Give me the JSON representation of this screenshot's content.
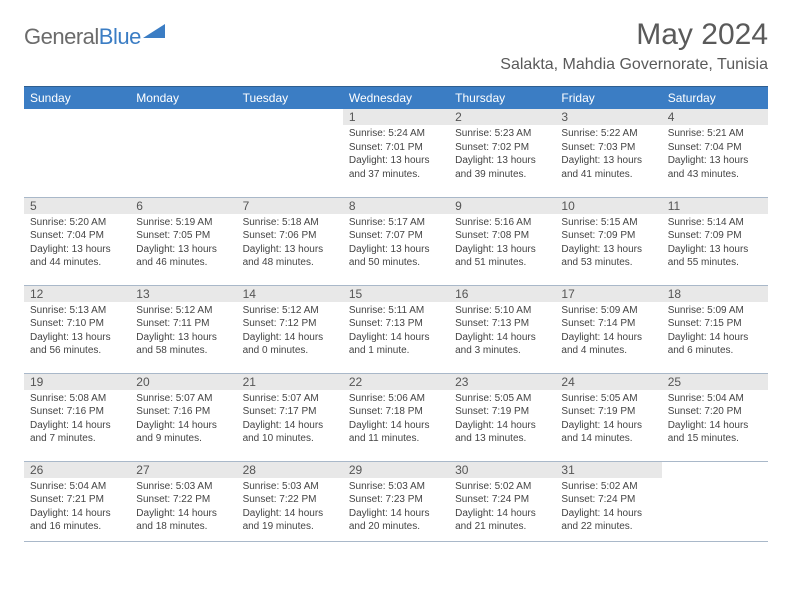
{
  "brand": {
    "part1": "General",
    "part2": "Blue"
  },
  "title": "May 2024",
  "location": "Salakta, Mahdia Governorate, Tunisia",
  "style": {
    "header_bg": "#3b7dc4",
    "header_text": "#ffffff",
    "header_border_top": "#2f5e8f",
    "daynum_bg": "#e8e8e8",
    "cell_border": "#a9b8c9",
    "body_text": "#444444",
    "title_color": "#5a5a5a",
    "font_family": "Arial",
    "month_title_fontsize": 30,
    "location_fontsize": 16,
    "dayhead_fontsize": 12,
    "body_fontsize": 10
  },
  "dayHeaders": [
    "Sunday",
    "Monday",
    "Tuesday",
    "Wednesday",
    "Thursday",
    "Friday",
    "Saturday"
  ],
  "weeks": [
    [
      null,
      null,
      null,
      {
        "n": "1",
        "sr": "Sunrise: 5:24 AM",
        "ss": "Sunset: 7:01 PM",
        "dl": "Daylight: 13 hours and 37 minutes."
      },
      {
        "n": "2",
        "sr": "Sunrise: 5:23 AM",
        "ss": "Sunset: 7:02 PM",
        "dl": "Daylight: 13 hours and 39 minutes."
      },
      {
        "n": "3",
        "sr": "Sunrise: 5:22 AM",
        "ss": "Sunset: 7:03 PM",
        "dl": "Daylight: 13 hours and 41 minutes."
      },
      {
        "n": "4",
        "sr": "Sunrise: 5:21 AM",
        "ss": "Sunset: 7:04 PM",
        "dl": "Daylight: 13 hours and 43 minutes."
      }
    ],
    [
      {
        "n": "5",
        "sr": "Sunrise: 5:20 AM",
        "ss": "Sunset: 7:04 PM",
        "dl": "Daylight: 13 hours and 44 minutes."
      },
      {
        "n": "6",
        "sr": "Sunrise: 5:19 AM",
        "ss": "Sunset: 7:05 PM",
        "dl": "Daylight: 13 hours and 46 minutes."
      },
      {
        "n": "7",
        "sr": "Sunrise: 5:18 AM",
        "ss": "Sunset: 7:06 PM",
        "dl": "Daylight: 13 hours and 48 minutes."
      },
      {
        "n": "8",
        "sr": "Sunrise: 5:17 AM",
        "ss": "Sunset: 7:07 PM",
        "dl": "Daylight: 13 hours and 50 minutes."
      },
      {
        "n": "9",
        "sr": "Sunrise: 5:16 AM",
        "ss": "Sunset: 7:08 PM",
        "dl": "Daylight: 13 hours and 51 minutes."
      },
      {
        "n": "10",
        "sr": "Sunrise: 5:15 AM",
        "ss": "Sunset: 7:09 PM",
        "dl": "Daylight: 13 hours and 53 minutes."
      },
      {
        "n": "11",
        "sr": "Sunrise: 5:14 AM",
        "ss": "Sunset: 7:09 PM",
        "dl": "Daylight: 13 hours and 55 minutes."
      }
    ],
    [
      {
        "n": "12",
        "sr": "Sunrise: 5:13 AM",
        "ss": "Sunset: 7:10 PM",
        "dl": "Daylight: 13 hours and 56 minutes."
      },
      {
        "n": "13",
        "sr": "Sunrise: 5:12 AM",
        "ss": "Sunset: 7:11 PM",
        "dl": "Daylight: 13 hours and 58 minutes."
      },
      {
        "n": "14",
        "sr": "Sunrise: 5:12 AM",
        "ss": "Sunset: 7:12 PM",
        "dl": "Daylight: 14 hours and 0 minutes."
      },
      {
        "n": "15",
        "sr": "Sunrise: 5:11 AM",
        "ss": "Sunset: 7:13 PM",
        "dl": "Daylight: 14 hours and 1 minute."
      },
      {
        "n": "16",
        "sr": "Sunrise: 5:10 AM",
        "ss": "Sunset: 7:13 PM",
        "dl": "Daylight: 14 hours and 3 minutes."
      },
      {
        "n": "17",
        "sr": "Sunrise: 5:09 AM",
        "ss": "Sunset: 7:14 PM",
        "dl": "Daylight: 14 hours and 4 minutes."
      },
      {
        "n": "18",
        "sr": "Sunrise: 5:09 AM",
        "ss": "Sunset: 7:15 PM",
        "dl": "Daylight: 14 hours and 6 minutes."
      }
    ],
    [
      {
        "n": "19",
        "sr": "Sunrise: 5:08 AM",
        "ss": "Sunset: 7:16 PM",
        "dl": "Daylight: 14 hours and 7 minutes."
      },
      {
        "n": "20",
        "sr": "Sunrise: 5:07 AM",
        "ss": "Sunset: 7:16 PM",
        "dl": "Daylight: 14 hours and 9 minutes."
      },
      {
        "n": "21",
        "sr": "Sunrise: 5:07 AM",
        "ss": "Sunset: 7:17 PM",
        "dl": "Daylight: 14 hours and 10 minutes."
      },
      {
        "n": "22",
        "sr": "Sunrise: 5:06 AM",
        "ss": "Sunset: 7:18 PM",
        "dl": "Daylight: 14 hours and 11 minutes."
      },
      {
        "n": "23",
        "sr": "Sunrise: 5:05 AM",
        "ss": "Sunset: 7:19 PM",
        "dl": "Daylight: 14 hours and 13 minutes."
      },
      {
        "n": "24",
        "sr": "Sunrise: 5:05 AM",
        "ss": "Sunset: 7:19 PM",
        "dl": "Daylight: 14 hours and 14 minutes."
      },
      {
        "n": "25",
        "sr": "Sunrise: 5:04 AM",
        "ss": "Sunset: 7:20 PM",
        "dl": "Daylight: 14 hours and 15 minutes."
      }
    ],
    [
      {
        "n": "26",
        "sr": "Sunrise: 5:04 AM",
        "ss": "Sunset: 7:21 PM",
        "dl": "Daylight: 14 hours and 16 minutes."
      },
      {
        "n": "27",
        "sr": "Sunrise: 5:03 AM",
        "ss": "Sunset: 7:22 PM",
        "dl": "Daylight: 14 hours and 18 minutes."
      },
      {
        "n": "28",
        "sr": "Sunrise: 5:03 AM",
        "ss": "Sunset: 7:22 PM",
        "dl": "Daylight: 14 hours and 19 minutes."
      },
      {
        "n": "29",
        "sr": "Sunrise: 5:03 AM",
        "ss": "Sunset: 7:23 PM",
        "dl": "Daylight: 14 hours and 20 minutes."
      },
      {
        "n": "30",
        "sr": "Sunrise: 5:02 AM",
        "ss": "Sunset: 7:24 PM",
        "dl": "Daylight: 14 hours and 21 minutes."
      },
      {
        "n": "31",
        "sr": "Sunrise: 5:02 AM",
        "ss": "Sunset: 7:24 PM",
        "dl": "Daylight: 14 hours and 22 minutes."
      },
      null
    ]
  ]
}
